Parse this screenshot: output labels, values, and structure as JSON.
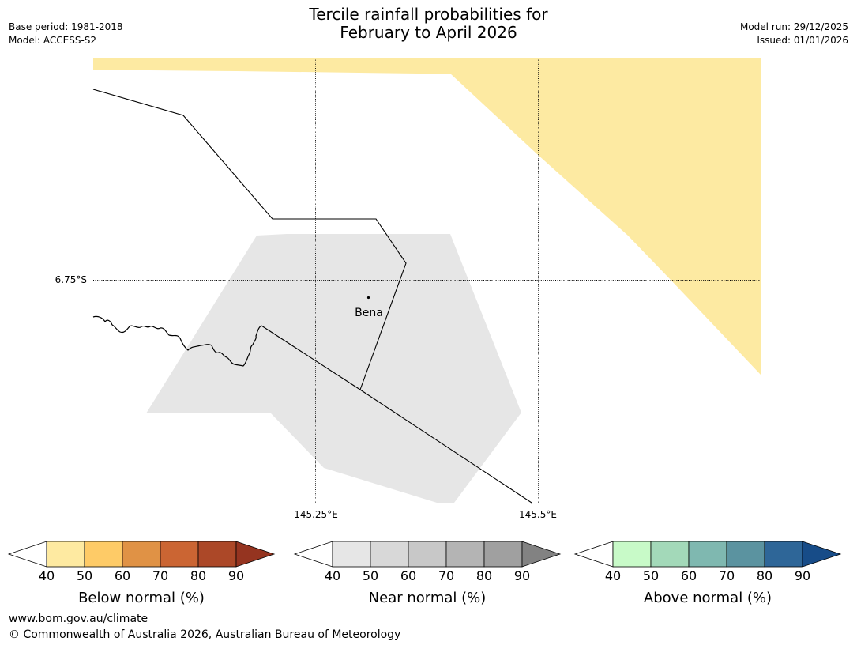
{
  "header": {
    "title_line1": "Tercile rainfall probabilities for",
    "title_line2": "February to April 2026",
    "base_period": "Base period: 1981-2018",
    "model": "Model: ACCESS-S2",
    "model_run": "Model run: 29/12/2025",
    "issued": "Issued: 01/01/2026"
  },
  "map": {
    "lat_labels": [
      "6.75°S"
    ],
    "lon_labels": [
      "145.25°E",
      "145.5°E"
    ],
    "place": {
      "name": "Bena"
    },
    "colors": {
      "below_40_50": "#fdeaa2",
      "near_40_50": "#e6e6e6",
      "boundary": "#000000",
      "gridline": "#000000"
    }
  },
  "colorbars": [
    {
      "title": "Below normal (%)",
      "ticks": [
        "40",
        "50",
        "60",
        "70",
        "80",
        "90"
      ],
      "under_color": "#ffffff",
      "colors": [
        "#feeaa1",
        "#fecb67",
        "#e09245",
        "#cb6533",
        "#ac4828"
      ],
      "over_color": "#953420"
    },
    {
      "title": "Near normal (%)",
      "ticks": [
        "40",
        "50",
        "60",
        "70",
        "80",
        "90"
      ],
      "under_color": "#ffffff",
      "colors": [
        "#e6e6e6",
        "#d8d8d8",
        "#c8c8c8",
        "#b4b4b4",
        "#a0a0a0"
      ],
      "over_color": "#828282"
    },
    {
      "title": "Above normal (%)",
      "ticks": [
        "40",
        "50",
        "60",
        "70",
        "80",
        "90"
      ],
      "under_color": "#ffffff",
      "colors": [
        "#c8fac8",
        "#a3d9b9",
        "#7fb8b0",
        "#5b93a0",
        "#2e6698"
      ],
      "over_color": "#174c88"
    }
  ],
  "footer": {
    "website": "www.bom.gov.au/climate",
    "copyright": "© Commonwealth of Australia 2026, Australian Bureau of Meteorology"
  }
}
